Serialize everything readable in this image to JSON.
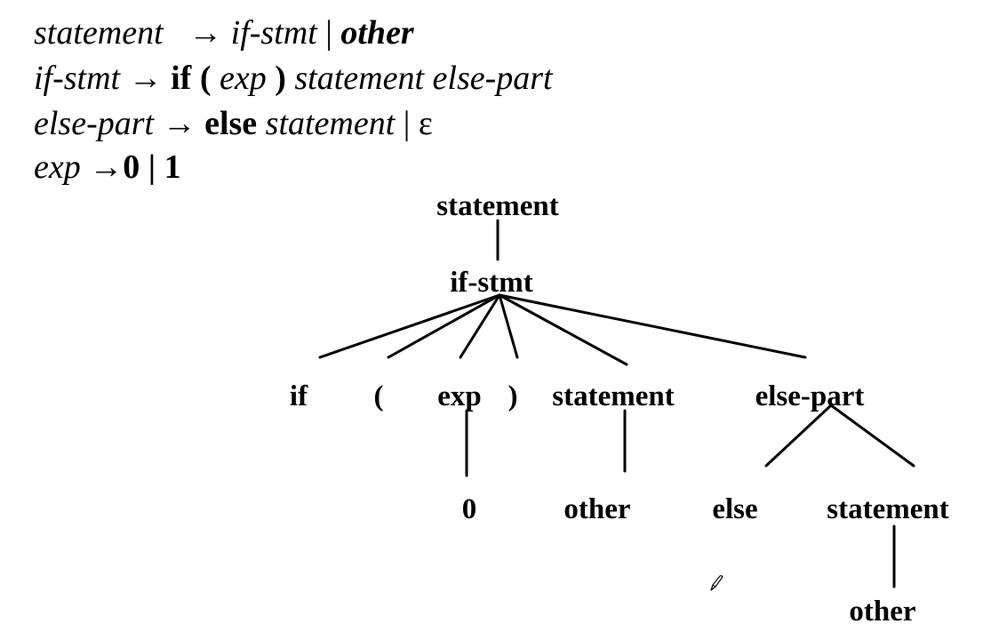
{
  "grammar": {
    "rule1": {
      "lhs": "statement",
      "arrow": "→",
      "alt1": "if-stmt",
      "bar": "|",
      "alt2": "other"
    },
    "rule2": {
      "lhs": "if-stmt",
      "arrow": "→",
      "kw_if": "if",
      "lparen": "(",
      "exp": "exp",
      "rparen": ")",
      "stmt": "statement",
      "elsepart": "else-part"
    },
    "rule3": {
      "lhs": "else-part",
      "arrow": "→",
      "kw_else": "else",
      "stmt": "statement",
      "bar": "|",
      "epsilon": "ε"
    },
    "rule4": {
      "lhs": "exp",
      "arrow": "→",
      "zero": "0",
      "bar": "|",
      "one": "1"
    }
  },
  "tree": {
    "root": "statement",
    "if_stmt": "if-stmt",
    "if": "if",
    "lparen": "(",
    "exp": "exp",
    "rparen": ")",
    "statement": "statement",
    "else_part": "else-part",
    "zero": "0",
    "other_1": "other",
    "else": "else",
    "statement_2": "statement",
    "other_2": "other"
  },
  "icons": {
    "cursor": "pencil-icon"
  }
}
